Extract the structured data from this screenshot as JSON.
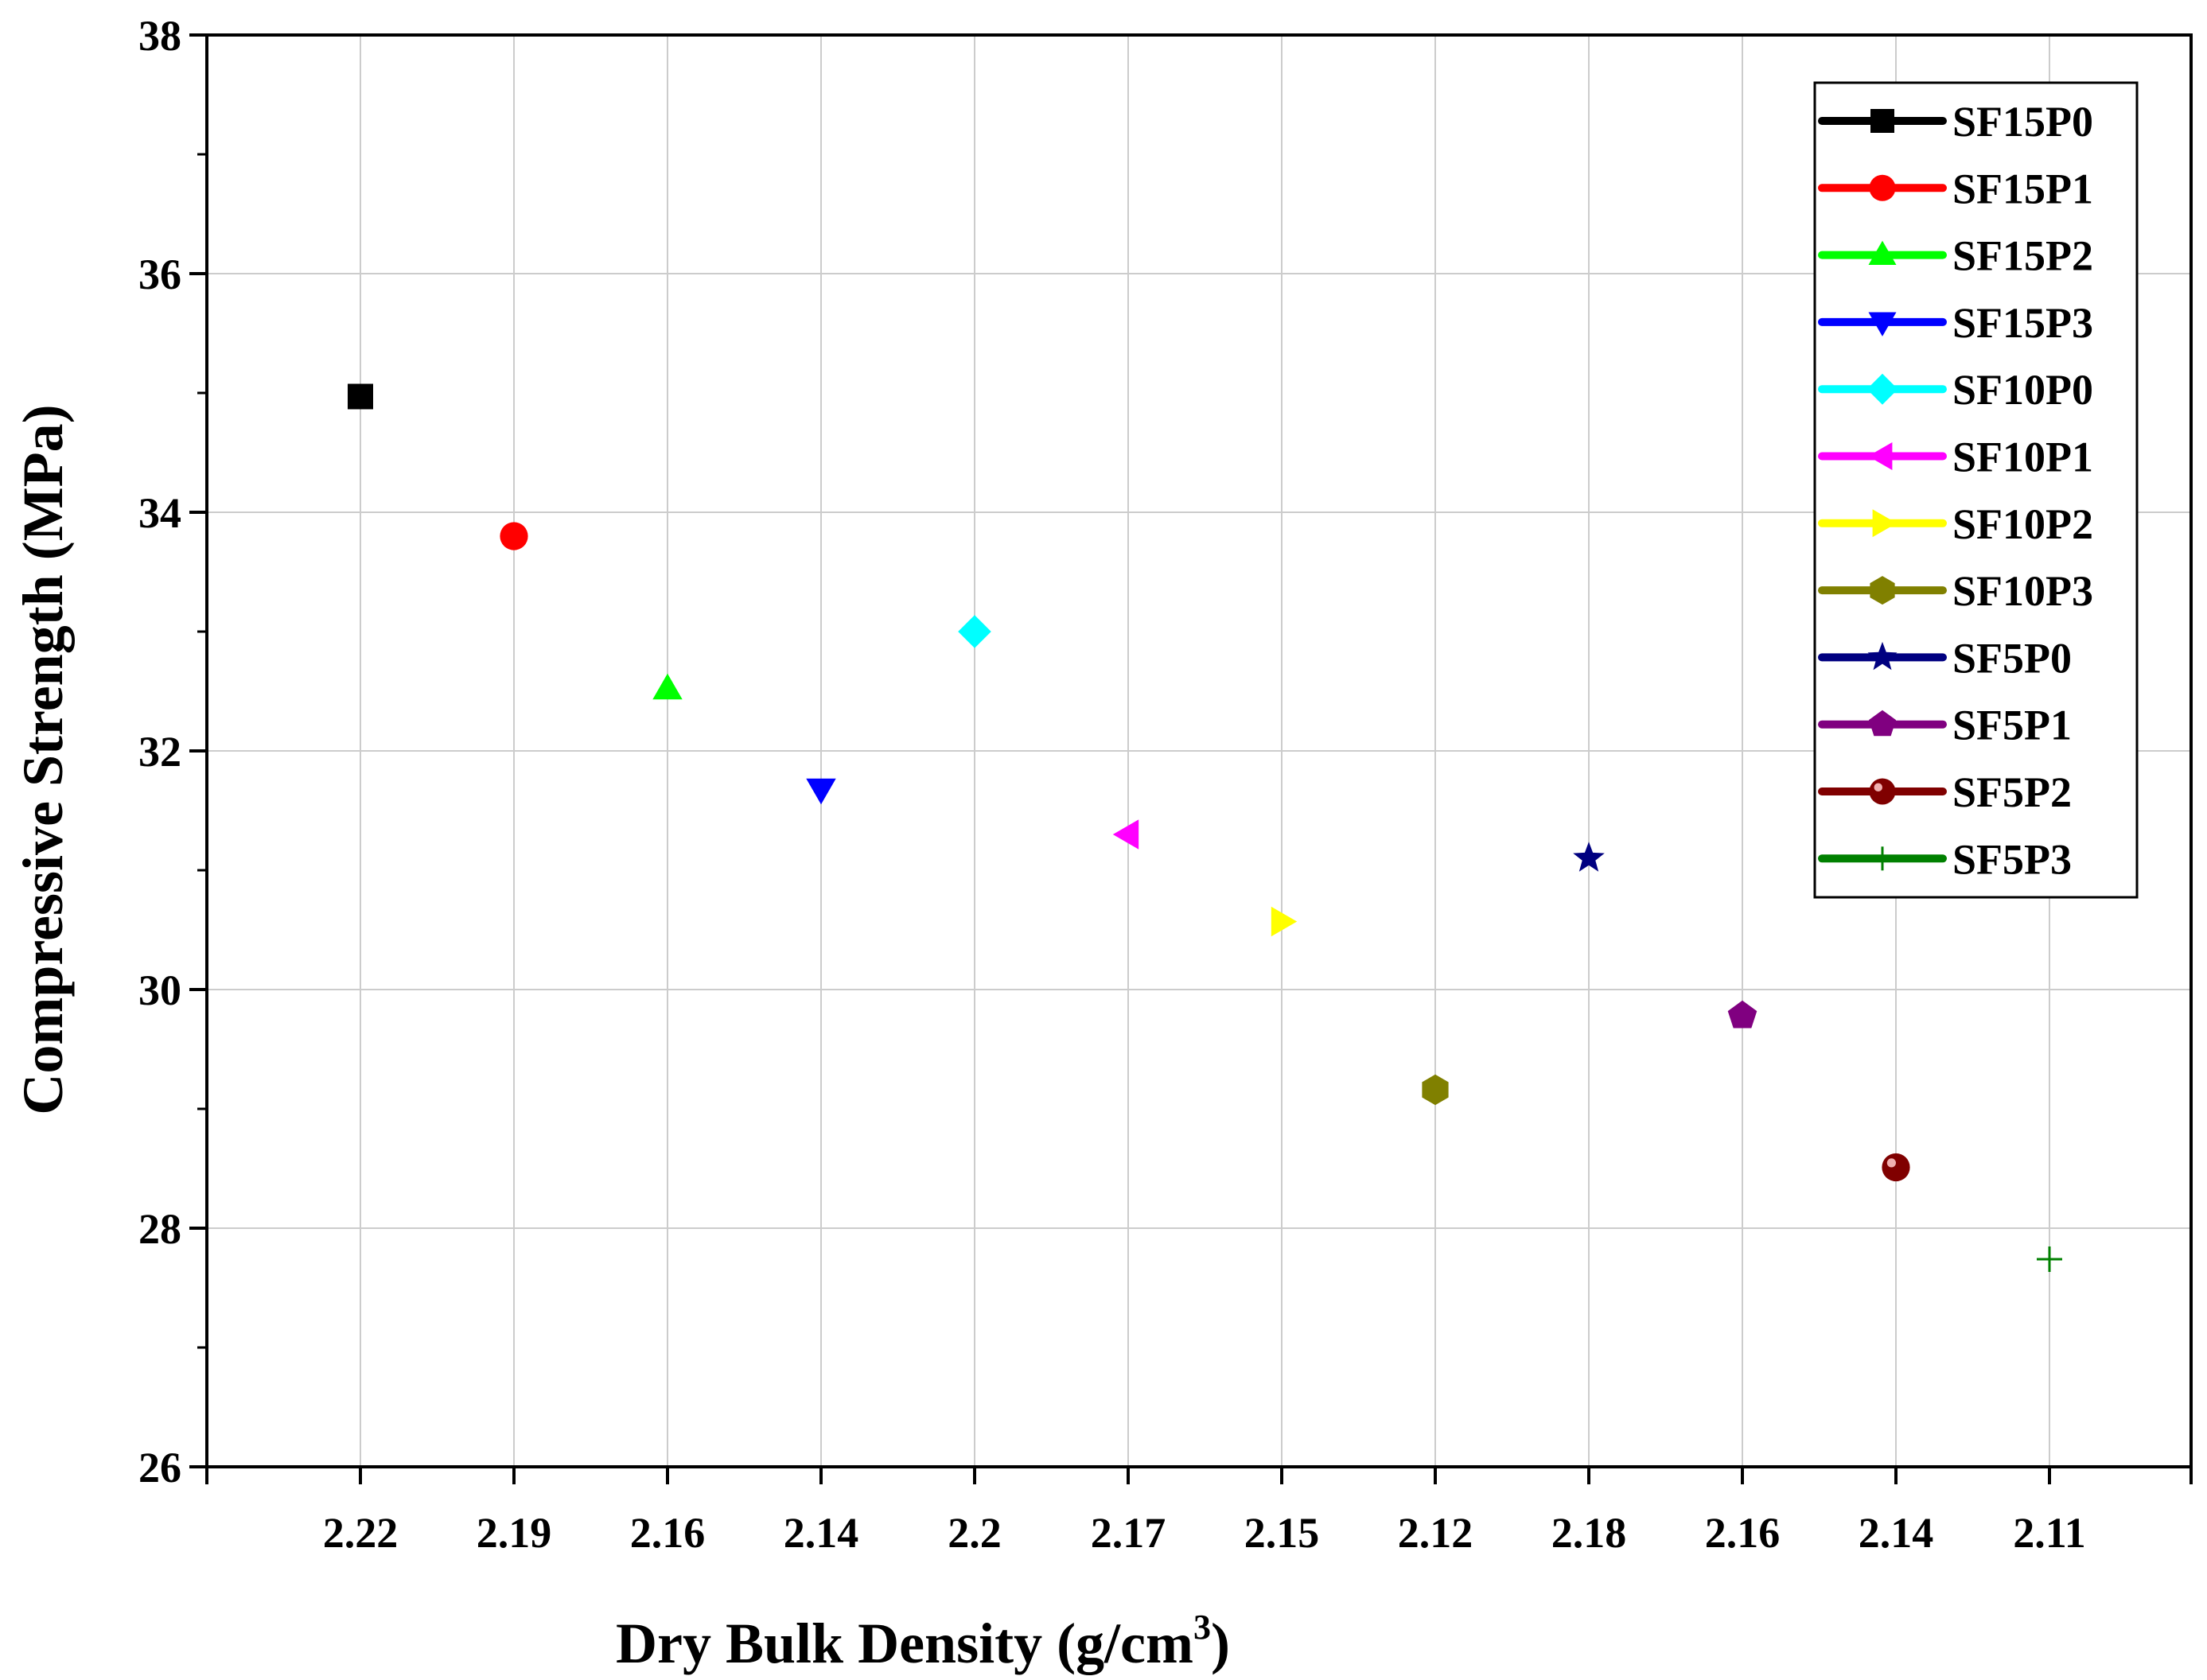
{
  "chart_data": {
    "type": "scatter",
    "title": "",
    "xlabel": "Dry Bulk Density (g/cm",
    "xlabel_sup": "3",
    "xlabel_end": ")",
    "ylabel": "Compressive Strength (MPa)",
    "categories": [
      "2.22",
      "2.19",
      "2.16",
      "2.14",
      "2.2",
      "2.17",
      "2.15",
      "2.12",
      "2.18",
      "2.16",
      "2.14",
      "2.11"
    ],
    "ylim": [
      26,
      38
    ],
    "yticks": [
      "26",
      "28",
      "30",
      "32",
      "34",
      "36",
      "38"
    ],
    "grid": true,
    "legend_position": "top-right",
    "series": [
      {
        "name": "SF15P0",
        "x": "2.22",
        "value": 34.97,
        "color": "#000000",
        "marker": "square"
      },
      {
        "name": "SF15P1",
        "x": "2.19",
        "value": 33.8,
        "color": "#ff0000",
        "marker": "circle"
      },
      {
        "name": "SF15P2",
        "x": "2.16",
        "value": 32.52,
        "color": "#00ff00",
        "marker": "triangle-up"
      },
      {
        "name": "SF15P3",
        "x": "2.14",
        "value": 31.68,
        "color": "#0000ff",
        "marker": "triangle-down"
      },
      {
        "name": "SF10P0",
        "x": "2.2",
        "value": 33.0,
        "color": "#00ffff",
        "marker": "diamond"
      },
      {
        "name": "SF10P1",
        "x": "2.17",
        "value": 31.3,
        "color": "#ff00ff",
        "marker": "triangle-left"
      },
      {
        "name": "SF10P2",
        "x": "2.15",
        "value": 30.57,
        "color": "#ffff00",
        "marker": "triangle-right"
      },
      {
        "name": "SF10P3",
        "x": "2.12",
        "value": 29.16,
        "color": "#808000",
        "marker": "hexagon"
      },
      {
        "name": "SF5P0",
        "x": "2.18",
        "value": 31.1,
        "color": "#000080",
        "marker": "star"
      },
      {
        "name": "SF5P1",
        "x": "2.16",
        "value": 29.78,
        "color": "#800080",
        "marker": "pentagon"
      },
      {
        "name": "SF5P2",
        "x": "2.14",
        "value": 28.51,
        "color": "#800000",
        "marker": "sphere"
      },
      {
        "name": "SF5P3",
        "x": "2.11",
        "value": 27.74,
        "color": "#008000",
        "marker": "plus"
      }
    ]
  }
}
